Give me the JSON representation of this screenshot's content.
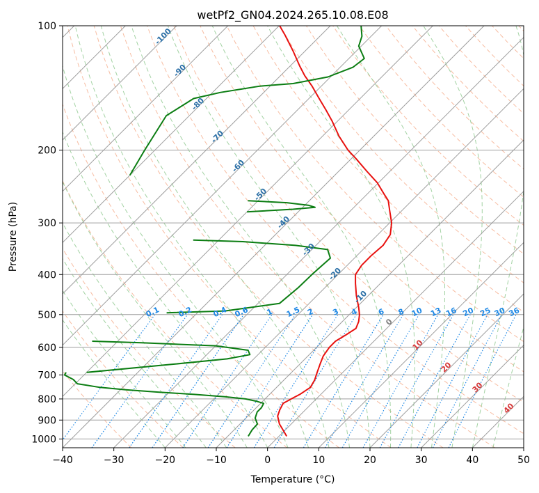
{
  "chart_data": {
    "type": "line",
    "title": "wetPf2_GN04.2024.265.10.08.E08",
    "xlabel": "Temperature (°C)",
    "ylabel": "Pressure (hPa)",
    "xlim": [
      -40,
      50
    ],
    "ylim": [
      1050,
      100
    ],
    "y_scale": "log",
    "skew_deg": 45,
    "x_ticks": [
      -40,
      -30,
      -20,
      -10,
      0,
      10,
      20,
      30,
      40,
      50
    ],
    "y_ticks": [
      100,
      200,
      300,
      400,
      500,
      600,
      700,
      800,
      900,
      1000
    ],
    "grid": true,
    "colors": {
      "temperature": "#e8110f",
      "dewpoint": "#0b7d12",
      "isotherm": "#9e9e9e",
      "dry_adiabat": "#f4a582",
      "moist_adiabat": "#8bc78b",
      "mixing_ratio": "#1e88e5",
      "wet_bulb_label": "#2b6fa6",
      "ref_curve": "#d9c9a3"
    },
    "series": [
      {
        "type": "temperature",
        "points": [
          {
            "p": 985,
            "t": 1.5
          },
          {
            "p": 950,
            "t": -0.5
          },
          {
            "p": 920,
            "t": -2.3
          },
          {
            "p": 880,
            "t": -4.2
          },
          {
            "p": 850,
            "t": -5.0
          },
          {
            "p": 820,
            "t": -5.6
          },
          {
            "p": 800,
            "t": -4.9
          },
          {
            "p": 780,
            "t": -4.1
          },
          {
            "p": 750,
            "t": -3.4
          },
          {
            "p": 720,
            "t": -4.0
          },
          {
            "p": 690,
            "t": -5.0
          },
          {
            "p": 660,
            "t": -6.0
          },
          {
            "p": 630,
            "t": -7.0
          },
          {
            "p": 600,
            "t": -7.5
          },
          {
            "p": 580,
            "t": -7.5
          },
          {
            "p": 560,
            "t": -6.7
          },
          {
            "p": 540,
            "t": -6.0
          },
          {
            "p": 520,
            "t": -6.8
          },
          {
            "p": 500,
            "t": -8.0
          },
          {
            "p": 480,
            "t": -9.6
          },
          {
            "p": 450,
            "t": -12.3
          },
          {
            "p": 420,
            "t": -14.9
          },
          {
            "p": 400,
            "t": -16.6
          },
          {
            "p": 380,
            "t": -17.2
          },
          {
            "p": 360,
            "t": -17.2
          },
          {
            "p": 340,
            "t": -16.9
          },
          {
            "p": 320,
            "t": -17.6
          },
          {
            "p": 300,
            "t": -19.6
          },
          {
            "p": 280,
            "t": -22.4
          },
          {
            "p": 265,
            "t": -24.6
          },
          {
            "p": 255,
            "t": -26.8
          },
          {
            "p": 240,
            "t": -30.2
          },
          {
            "p": 225,
            "t": -34.5
          },
          {
            "p": 210,
            "t": -39.0
          },
          {
            "p": 200,
            "t": -42.3
          },
          {
            "p": 185,
            "t": -46.8
          },
          {
            "p": 170,
            "t": -51.1
          },
          {
            "p": 160,
            "t": -54.4
          },
          {
            "p": 150,
            "t": -58.0
          },
          {
            "p": 140,
            "t": -61.8
          },
          {
            "p": 132,
            "t": -65.3
          },
          {
            "p": 125,
            "t": -68.2
          },
          {
            "p": 115,
            "t": -72.4
          },
          {
            "p": 105,
            "t": -77.2
          },
          {
            "p": 100,
            "t": -79.9
          }
        ]
      },
      {
        "type": "dewpoint",
        "points": [
          {
            "p": 985,
            "t": -6.0
          },
          {
            "p": 950,
            "t": -6.5
          },
          {
            "p": 920,
            "t": -6.6
          },
          {
            "p": 890,
            "t": -8.2
          },
          {
            "p": 860,
            "t": -9.0
          },
          {
            "p": 840,
            "t": -9.0
          },
          {
            "p": 820,
            "t": -9.4
          },
          {
            "p": 810,
            "t": -11.3
          },
          {
            "p": 800,
            "t": -13.8
          },
          {
            "p": 790,
            "t": -18.3
          },
          {
            "p": 780,
            "t": -24.7
          },
          {
            "p": 770,
            "t": -32.2
          },
          {
            "p": 760,
            "t": -39.0
          },
          {
            "p": 750,
            "t": -44.5
          },
          {
            "p": 735,
            "t": -49.6
          },
          {
            "p": 718,
            "t": -51.2
          },
          {
            "p": 700,
            "t": -53.8
          },
          {
            "p": 690,
            "t": -54.0
          }
        ]
      },
      {
        "type": "dewpoint",
        "points": [
          {
            "p": 690,
            "t": -50.0
          },
          {
            "p": 660,
            "t": -35.0
          },
          {
            "p": 640,
            "t": -25.2
          },
          {
            "p": 625,
            "t": -21.6
          },
          {
            "p": 610,
            "t": -22.8
          },
          {
            "p": 595,
            "t": -30.0
          },
          {
            "p": 585,
            "t": -45.0
          },
          {
            "p": 580,
            "t": -55.0
          }
        ]
      },
      {
        "type": "dewpoint",
        "points": [
          {
            "p": 495,
            "t": -46.0
          },
          {
            "p": 490,
            "t": -35.0
          },
          {
            "p": 470,
            "t": -25.8
          },
          {
            "p": 430,
            "t": -25.2
          },
          {
            "p": 400,
            "t": -25.1
          },
          {
            "p": 380,
            "t": -24.9
          },
          {
            "p": 365,
            "t": -24.7
          },
          {
            "p": 348,
            "t": -26.9
          },
          {
            "p": 340,
            "t": -34.0
          },
          {
            "p": 333,
            "t": -45.0
          },
          {
            "p": 330,
            "t": -55.0
          }
        ]
      },
      {
        "type": "dewpoint",
        "points": [
          {
            "p": 282,
            "t": -50.0
          },
          {
            "p": 278,
            "t": -41.5
          },
          {
            "p": 275,
            "t": -37.6
          },
          {
            "p": 272,
            "t": -39.2
          },
          {
            "p": 268,
            "t": -44.0
          },
          {
            "p": 265,
            "t": -52.0
          }
        ]
      },
      {
        "type": "dewpoint",
        "points": [
          {
            "p": 230,
            "t": -80.0
          },
          {
            "p": 200,
            "t": -82.0
          },
          {
            "p": 165,
            "t": -84.5
          },
          {
            "p": 150,
            "t": -82.5
          },
          {
            "p": 145,
            "t": -78.5
          },
          {
            "p": 140,
            "t": -72.0
          },
          {
            "p": 138,
            "t": -66.0
          },
          {
            "p": 133,
            "t": -60.5
          },
          {
            "p": 126,
            "t": -57.5
          },
          {
            "p": 120,
            "t": -57.0
          },
          {
            "p": 112,
            "t": -60.5
          },
          {
            "p": 106,
            "t": -61.8
          },
          {
            "p": 100,
            "t": -64.0
          }
        ]
      }
    ],
    "mixing_ratio_labels": [
      "0.1",
      "0.2",
      "0.4",
      "0.6",
      "1",
      "1.5",
      "2",
      "3",
      "4",
      "6",
      "8",
      "10",
      "13",
      "16",
      "20",
      "25",
      "30",
      "36"
    ],
    "mixing_ratio_values": [
      0.1,
      0.2,
      0.4,
      0.6,
      1,
      1.5,
      2,
      3,
      4,
      6,
      8,
      10,
      13,
      16,
      20,
      25,
      30,
      36
    ],
    "wet_bulb_labels": [
      {
        "text": "-100",
        "color": "#2b6fa6"
      },
      {
        "text": "-90",
        "color": "#2b6fa6"
      },
      {
        "text": "-80",
        "color": "#2b6fa6"
      },
      {
        "text": "-70",
        "color": "#2b6fa6"
      },
      {
        "text": "-60",
        "color": "#2b6fa6"
      },
      {
        "text": "-50",
        "color": "#2b6fa6"
      },
      {
        "text": "-40",
        "color": "#2b6fa6"
      },
      {
        "text": "-30",
        "color": "#2b6fa6"
      },
      {
        "text": "-20",
        "color": "#2b6fa6"
      },
      {
        "text": "-10",
        "color": "#2b6fa6"
      },
      {
        "text": "0",
        "color": "#808080"
      },
      {
        "text": "10",
        "color": "#d63a3a"
      },
      {
        "text": "20",
        "color": "#d63a3a"
      },
      {
        "text": "30",
        "color": "#d63a3a"
      },
      {
        "text": "40",
        "color": "#d63a3a"
      }
    ]
  }
}
